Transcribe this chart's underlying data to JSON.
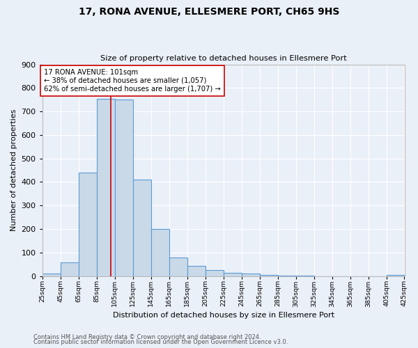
{
  "title": "17, RONA AVENUE, ELLESMERE PORT, CH65 9HS",
  "subtitle": "Size of property relative to detached houses in Ellesmere Port",
  "xlabel": "Distribution of detached houses by size in Ellesmere Port",
  "ylabel": "Number of detached properties",
  "footnote1": "Contains HM Land Registry data © Crown copyright and database right 2024.",
  "footnote2": "Contains public sector information licensed under the Open Government Licence v3.0.",
  "bins": [
    25,
    45,
    65,
    85,
    105,
    125,
    145,
    165,
    185,
    205,
    225,
    245,
    265,
    285,
    305,
    325,
    345,
    365,
    385,
    405,
    425
  ],
  "bar_heights": [
    10,
    58,
    440,
    755,
    750,
    410,
    200,
    78,
    43,
    27,
    13,
    10,
    5,
    2,
    1,
    0,
    0,
    0,
    0,
    5
  ],
  "bar_color": "#c9d9e8",
  "bar_edge_color": "#5b9bd5",
  "vline_x": 101,
  "vline_color": "#cc0000",
  "annotation_text": "17 RONA AVENUE: 101sqm\n← 38% of detached houses are smaller (1,057)\n62% of semi-detached houses are larger (1,707) →",
  "annotation_box_color": "#ffffff",
  "annotation_box_edge": "#cc0000",
  "ylim": [
    0,
    900
  ],
  "yticks": [
    0,
    100,
    200,
    300,
    400,
    500,
    600,
    700,
    800,
    900
  ],
  "background_color": "#eaf0f8",
  "grid_color": "#ffffff",
  "tick_labels": [
    "25sqm",
    "45sqm",
    "65sqm",
    "85sqm",
    "105sqm",
    "125sqm",
    "145sqm",
    "165sqm",
    "185sqm",
    "205sqm",
    "225sqm",
    "245sqm",
    "265sqm",
    "285sqm",
    "305sqm",
    "325sqm",
    "345sqm",
    "365sqm",
    "385sqm",
    "405sqm",
    "425sqm"
  ]
}
